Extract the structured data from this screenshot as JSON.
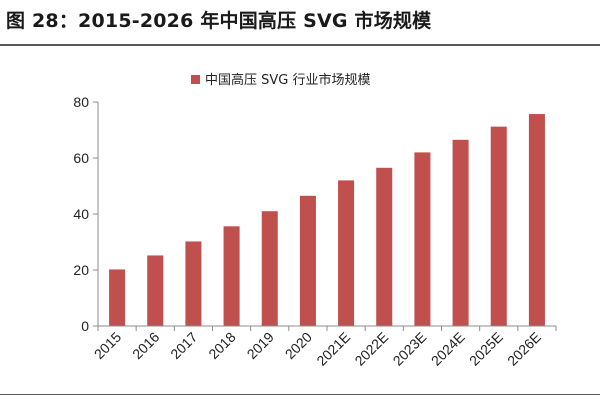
{
  "figure": {
    "title": "图 28：2015-2026 年中国高压 SVG 市场规模"
  },
  "chart_data": {
    "type": "bar",
    "categories": [
      "2015",
      "2016",
      "2017",
      "2018",
      "2019",
      "2020",
      "2021E",
      "2022E",
      "2023E",
      "2024E",
      "2025E",
      "2026E"
    ],
    "series": [
      {
        "name": "中国高压 SVG 行业市场规模",
        "values": [
          20.2,
          25.2,
          30.2,
          35.6,
          41.0,
          46.5,
          52.0,
          56.5,
          62.0,
          66.5,
          71.2,
          75.7
        ]
      }
    ],
    "title": "",
    "xlabel": "",
    "ylabel": "",
    "ylim": [
      0,
      80
    ],
    "yticks": [
      0,
      20,
      40,
      60,
      80
    ],
    "legend": "top-center",
    "grid": false,
    "bar_color": "#c0504d"
  }
}
